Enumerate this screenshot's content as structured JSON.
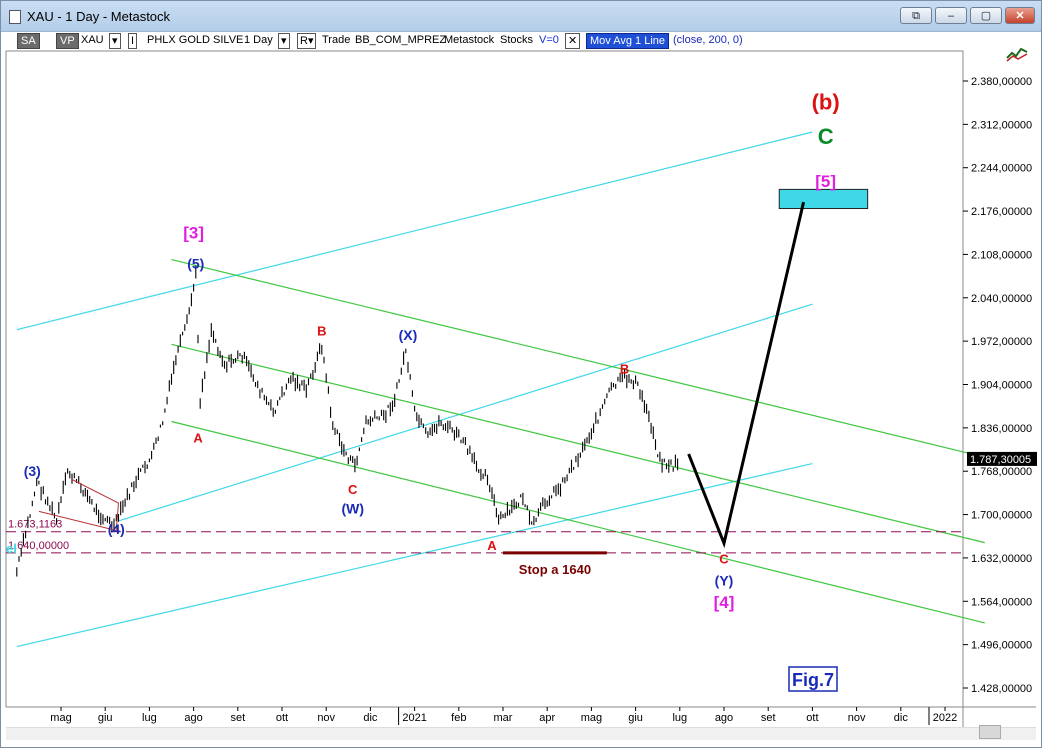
{
  "window": {
    "title": "XAU - 1 Day - Metastock",
    "buttons": {
      "b1": "⧉",
      "min": "–",
      "max": "▢",
      "close": "✕"
    }
  },
  "toolbar": {
    "sa": "SA",
    "vp": "VP",
    "symbol": "XAU",
    "dd1": "▾",
    "i_mark": "I",
    "name": "PHLX GOLD SILVE",
    "period": "1 Day",
    "dd2": "▾",
    "r_mark": "R▾",
    "trade": "Trade",
    "system": "BB_COM_MPREZ",
    "platform": "Metastock",
    "group": "Stocks",
    "volume": "V=0",
    "x_mark": "✕",
    "indicator": "Mov Avg 1 Line",
    "params": "(close,  200,  0)"
  },
  "colors": {
    "background": "#ffffff",
    "price": "#000000",
    "channel_green": "#3fc63f",
    "channel_cyan": "#3fd8e8",
    "wave_magenta": "#e020e0",
    "wave_red": "#dd1111",
    "wave_blue": "#1a2bb8",
    "wave_green": "#0a8a2a",
    "target_box": "#3fd8e8",
    "dashed_level": "#8b0a50"
  },
  "chart_data": {
    "type": "line",
    "title": "",
    "xlabel": "",
    "ylabel": "",
    "ylim": [
      1385,
      2450
    ],
    "y_axis_ticks": [
      "2.380,00000",
      "2.312,00000",
      "2.244,00000",
      "2.176,00000",
      "2.108,00000",
      "2.040,00000",
      "1.972,00000",
      "1.904,00000",
      "1.836,00000",
      "1.768,00000",
      "1.700,00000",
      "1.632,00000",
      "1.564,00000",
      "1.496,00000",
      "1.428,00000"
    ],
    "y_axis_values": [
      2380,
      2312,
      2244,
      2176,
      2108,
      2040,
      1972,
      1904,
      1836,
      1768,
      1700,
      1632,
      1564,
      1496,
      1428
    ],
    "x_axis_ticks": [
      "mag",
      "giu",
      "lug",
      "ago",
      "set",
      "ott",
      "nov",
      "dic",
      "2021",
      "feb",
      "mar",
      "apr",
      "mag",
      "giu",
      "lug",
      "ago",
      "set",
      "ott",
      "nov",
      "dic",
      "2022"
    ],
    "x_axis_months": [
      1.0,
      2.0,
      3.0,
      4.0,
      5.0,
      6.0,
      7.0,
      8.0,
      9.0,
      10.0,
      11.0,
      12.0,
      13.0,
      14.0,
      15.0,
      16.0,
      17.0,
      18.0,
      19.0,
      20.0,
      21.0
    ],
    "last_price": "1.787,30005",
    "series": [
      {
        "type": "price",
        "points": [
          [
            0.0,
            1610
          ],
          [
            0.3,
            1700
          ],
          [
            0.45,
            1752
          ],
          [
            0.7,
            1720
          ],
          [
            0.9,
            1690
          ],
          [
            1.15,
            1768
          ],
          [
            1.5,
            1740
          ],
          [
            1.8,
            1705
          ],
          [
            2.05,
            1690
          ],
          [
            2.2,
            1680
          ],
          [
            2.45,
            1720
          ],
          [
            2.75,
            1760
          ],
          [
            3.05,
            1790
          ],
          [
            3.3,
            1845
          ],
          [
            3.6,
            1945
          ],
          [
            3.85,
            2000
          ],
          [
            4.05,
            2075
          ],
          [
            4.15,
            1880
          ],
          [
            4.4,
            1990
          ],
          [
            4.7,
            1935
          ],
          [
            5.1,
            1950
          ],
          [
            5.5,
            1895
          ],
          [
            5.8,
            1860
          ],
          [
            6.2,
            1915
          ],
          [
            6.55,
            1895
          ],
          [
            6.9,
            1965
          ],
          [
            7.15,
            1840
          ],
          [
            7.4,
            1800
          ],
          [
            7.65,
            1775
          ],
          [
            7.9,
            1845
          ],
          [
            8.3,
            1855
          ],
          [
            8.55,
            1880
          ],
          [
            8.8,
            1958
          ],
          [
            9.0,
            1860
          ],
          [
            9.3,
            1820
          ],
          [
            9.55,
            1845
          ],
          [
            9.8,
            1835
          ],
          [
            10.1,
            1815
          ],
          [
            10.4,
            1775
          ],
          [
            10.65,
            1760
          ],
          [
            10.9,
            1690
          ],
          [
            11.15,
            1705
          ],
          [
            11.45,
            1728
          ],
          [
            11.65,
            1680
          ],
          [
            11.95,
            1720
          ],
          [
            12.3,
            1745
          ],
          [
            12.7,
            1790
          ],
          [
            13.1,
            1845
          ],
          [
            13.45,
            1898
          ],
          [
            13.75,
            1915
          ],
          [
            14.0,
            1908
          ],
          [
            14.3,
            1855
          ],
          [
            14.55,
            1785
          ],
          [
            14.85,
            1775
          ],
          [
            15.0,
            1787
          ]
        ]
      },
      {
        "type": "projection",
        "points": [
          [
            15.2,
            1795
          ],
          [
            16.0,
            1655
          ],
          [
            17.8,
            2190
          ]
        ]
      }
    ],
    "channels": [
      {
        "color": "cyan",
        "from": [
          0.0,
          1990
        ],
        "to": [
          18.0,
          2300
        ]
      },
      {
        "color": "cyan",
        "from": [
          0.0,
          1493
        ],
        "to": [
          18.0,
          1780
        ]
      },
      {
        "color": "cyan",
        "from": [
          2.3,
          1690
        ],
        "to": [
          18.0,
          2030
        ]
      },
      {
        "color": "green",
        "from": [
          3.5,
          2100
        ],
        "to": [
          21.9,
          1790
        ]
      },
      {
        "color": "green",
        "from": [
          3.5,
          1967
        ],
        "to": [
          21.9,
          1656
        ]
      },
      {
        "color": "green",
        "from": [
          3.5,
          1846
        ],
        "to": [
          21.9,
          1530
        ]
      }
    ],
    "levels": [
      {
        "value": 1673.1163,
        "label": "1.673,1163",
        "style": "dashed"
      },
      {
        "value": 1640.0,
        "label": "1.640,00000",
        "style": "dashed"
      }
    ],
    "stop_line": {
      "value": 1640,
      "x_from": 11.0,
      "x_to": 13.35,
      "label": "Stop a 1640"
    },
    "target_box": {
      "x_from": 17.25,
      "x_to": 19.25,
      "y_from": 2180,
      "y_to": 2210
    },
    "annotations": [
      {
        "text": "(3)",
        "x": 0.35,
        "y": 1768,
        "color": "blue"
      },
      {
        "text": "(4)",
        "x": 2.25,
        "y": 1677,
        "color": "blue"
      },
      {
        "text": "[3]",
        "x": 4.0,
        "y": 2142,
        "color": "magenta"
      },
      {
        "text": "(5)",
        "x": 4.05,
        "y": 2093,
        "color": "blue"
      },
      {
        "text": "A",
        "x": 4.1,
        "y": 1820,
        "color": "red"
      },
      {
        "text": "B",
        "x": 6.9,
        "y": 1988,
        "color": "red"
      },
      {
        "text": "C",
        "x": 7.6,
        "y": 1739,
        "color": "red"
      },
      {
        "text": "(W)",
        "x": 7.6,
        "y": 1709,
        "color": "blue"
      },
      {
        "text": "(X)",
        "x": 8.85,
        "y": 1981,
        "color": "blue"
      },
      {
        "text": "A",
        "x": 10.75,
        "y": 1651,
        "color": "red"
      },
      {
        "text": "B",
        "x": 13.75,
        "y": 1928,
        "color": "red"
      },
      {
        "text": "C",
        "x": 16.0,
        "y": 1630,
        "color": "red"
      },
      {
        "text": "(Y)",
        "x": 16.0,
        "y": 1596,
        "color": "blue"
      },
      {
        "text": "[4]",
        "x": 16.0,
        "y": 1562,
        "color": "magenta"
      },
      {
        "text": "[5]",
        "x": 18.3,
        "y": 2223,
        "color": "magenta"
      },
      {
        "text": "C",
        "x": 18.3,
        "y": 2293,
        "color": "green"
      },
      {
        "text": "(b)",
        "x": 18.3,
        "y": 2347,
        "color": "red"
      }
    ],
    "left_fragment": "el",
    "figure_label": "Fig.7"
  }
}
